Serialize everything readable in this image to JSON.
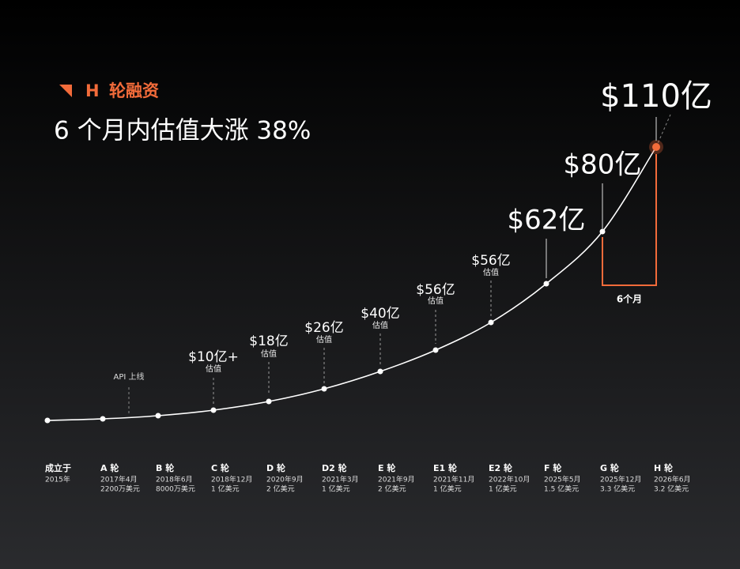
{
  "header": {
    "marker": "H",
    "title": "轮融资",
    "headline": "6 个月内估值大涨 38%"
  },
  "annotation": "API 上线",
  "bracket_label": "6个月",
  "milestones": [
    {
      "round": "成立于",
      "date": "2015年"
    },
    {
      "round": "A 轮",
      "date": "2017年4月",
      "raised": "2200万美元"
    },
    {
      "round": "B 轮",
      "date": "2018年6月",
      "raised": "8000万美元"
    },
    {
      "round": "C 轮",
      "date": "2018年12月",
      "raised": "1 亿美元",
      "valuation": "$10亿+",
      "valuation_note": "估值"
    },
    {
      "round": "D 轮",
      "date": "2020年9月",
      "raised": "2 亿美元",
      "valuation": "$18亿",
      "valuation_note": "估值"
    },
    {
      "round": "D2 轮",
      "date": "2021年3月",
      "raised": "1 亿美元",
      "valuation": "$26亿",
      "valuation_note": "估值"
    },
    {
      "round": "E 轮",
      "date": "2021年9月",
      "raised": "2 亿美元",
      "valuation": "$40亿",
      "valuation_note": "估值"
    },
    {
      "round": "E1 轮",
      "date": "2021年11月",
      "raised": "1 亿美元",
      "valuation": "$56亿",
      "valuation_note": "估值"
    },
    {
      "round": "E2 轮",
      "date": "2022年10月",
      "raised": "1 亿美元",
      "valuation": "$56亿",
      "valuation_note": "估值"
    },
    {
      "round": "F 轮",
      "date": "2025年5月",
      "raised": "1.5 亿美元",
      "valuation": "$62亿"
    },
    {
      "round": "G 轮",
      "date": "2025年12月",
      "raised": "3.3 亿美元",
      "valuation": "$80亿"
    },
    {
      "round": "H 轮",
      "date": "2026年6月",
      "raised": "3.2 亿美元",
      "valuation": "$110亿"
    }
  ]
}
